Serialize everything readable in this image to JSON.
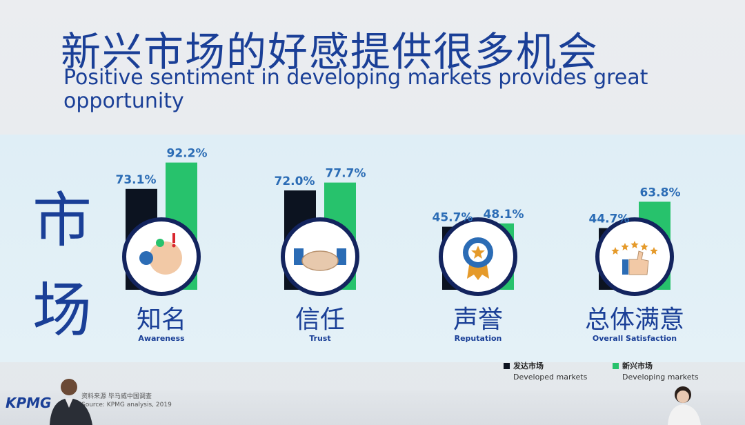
{
  "title_zh": "新兴市场的好感提供很多机会",
  "title_en": "Positive sentiment in developing markets provides great opportunity",
  "market_label": [
    "市",
    "场"
  ],
  "colors": {
    "developed": "#0c1320",
    "developing": "#27c26c",
    "accent": "#1a3f97",
    "value_text": "#2b6cb5"
  },
  "chart_data": {
    "type": "bar",
    "categories": [
      "知名",
      "信任",
      "声誉",
      "总体满意"
    ],
    "categories_en": [
      "Awareness",
      "Trust",
      "Reputation",
      "Overall Satisfaction"
    ],
    "icons": [
      "awareness-head-icon",
      "handshake-icon",
      "medal-icon",
      "five-stars-thumbs-up-icon"
    ],
    "series": [
      {
        "name": "发达市场",
        "name_en": "Developed markets",
        "values": [
          73.1,
          72.0,
          45.7,
          44.7
        ],
        "labels": [
          "73.1%",
          "72.0%",
          "45.7%",
          "44.7%"
        ]
      },
      {
        "name": "新兴市场",
        "name_en": "Developing markets",
        "values": [
          92.2,
          77.7,
          48.1,
          63.8
        ],
        "labels": [
          "92.2%",
          "77.7%",
          "48.1%",
          "63.8%"
        ]
      }
    ],
    "legend_position": "bottom-right"
  },
  "footer": {
    "brand": "KPMG",
    "source_zh": "资料来源  毕马威中国调查",
    "source_en": "Source: KPMG analysis, 2019"
  }
}
